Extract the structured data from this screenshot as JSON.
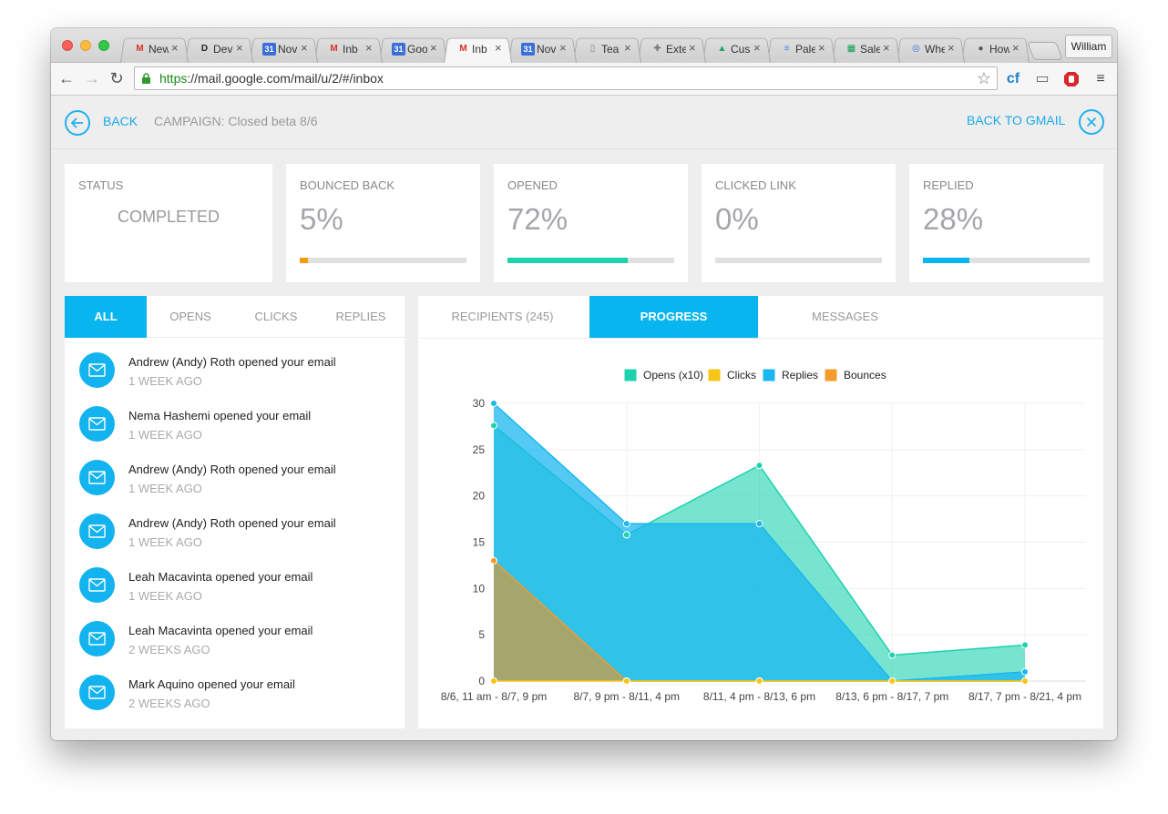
{
  "browser": {
    "tabs": [
      {
        "title": "New",
        "favicon": "gmail-icon",
        "fav_color": "#d93025",
        "fav_text": "M"
      },
      {
        "title": "Dev",
        "favicon": "dev-icon",
        "fav_color": "#222222",
        "fav_text": "D"
      },
      {
        "title": "Nov",
        "favicon": "calendar-icon",
        "fav_color": "#3b6fd8",
        "fav_text": "31"
      },
      {
        "title": "Inb",
        "favicon": "gmail-icon",
        "fav_color": "#d93025",
        "fav_text": "M"
      },
      {
        "title": "Goo",
        "favicon": "calendar-icon",
        "fav_color": "#3b6fd8",
        "fav_text": "31"
      },
      {
        "title": "Inb",
        "favicon": "gmail-icon",
        "fav_color": "#d93025",
        "fav_text": "M",
        "active": true
      },
      {
        "title": "Nov",
        "favicon": "calendar-icon",
        "fav_color": "#3b6fd8",
        "fav_text": "31"
      },
      {
        "title": "Tea",
        "favicon": "document-icon",
        "fav_color": "#888888",
        "fav_text": "▯"
      },
      {
        "title": "Exte",
        "favicon": "puzzle-icon",
        "fav_color": "#777777",
        "fav_text": "✚"
      },
      {
        "title": "Cus",
        "favicon": "drive-icon",
        "fav_color": "#1fa463",
        "fav_text": "▲"
      },
      {
        "title": "Pale",
        "favicon": "docs-icon",
        "fav_color": "#4285f4",
        "fav_text": "≡"
      },
      {
        "title": "Sale",
        "favicon": "sheets-icon",
        "fav_color": "#0f9d58",
        "fav_text": "▦"
      },
      {
        "title": "Whe",
        "favicon": "target-icon",
        "fav_color": "#3b6fd8",
        "fav_text": "◎"
      },
      {
        "title": "How",
        "favicon": "apple-icon",
        "fav_color": "#555555",
        "fav_text": "●"
      }
    ],
    "close_glyph": "×",
    "profile_name": "William",
    "url_scheme": "https",
    "url_rest": "://mail.google.com/mail/u/2/#/inbox"
  },
  "header": {
    "back_label": "BACK",
    "campaign_label": "CAMPAIGN: Closed beta 8/6",
    "back_to_gmail_label": "BACK TO GMAIL"
  },
  "stats": {
    "status": {
      "label": "STATUS",
      "value": "COMPLETED"
    },
    "bounced": {
      "label": "BOUNCED BACK",
      "value": "5%",
      "fraction": 0.05,
      "color": "#f39c12"
    },
    "opened": {
      "label": "OPENED",
      "value": "72%",
      "fraction": 0.72,
      "color": "#1dd2af"
    },
    "clicked": {
      "label": "CLICKED LINK",
      "value": "0%",
      "fraction": 0.0,
      "color": "#f1c40f"
    },
    "replied": {
      "label": "REPLIED",
      "value": "28%",
      "fraction": 0.28,
      "color": "#09b5ee"
    }
  },
  "activity": {
    "tabs": [
      "ALL",
      "OPENS",
      "CLICKS",
      "REPLIES"
    ],
    "active_tab": "ALL",
    "items": [
      {
        "text": "Andrew (Andy) Roth opened your email",
        "time": "1 WEEK AGO"
      },
      {
        "text": "Nema Hashemi opened your email",
        "time": "1 WEEK AGO"
      },
      {
        "text": "Andrew (Andy) Roth opened your email",
        "time": "1 WEEK AGO"
      },
      {
        "text": "Andrew (Andy) Roth opened your email",
        "time": "1 WEEK AGO"
      },
      {
        "text": "Leah Macavinta opened your email",
        "time": "1 WEEK AGO"
      },
      {
        "text": "Leah Macavinta opened your email",
        "time": "2 WEEKS AGO"
      },
      {
        "text": "Mark Aquino opened your email",
        "time": "2 WEEKS AGO"
      }
    ]
  },
  "detail_tabs": {
    "recipients": "RECIPIENTS (245)",
    "progress": "PROGRESS",
    "messages": "MESSAGES",
    "active": "PROGRESS"
  },
  "chart_data": {
    "type": "area",
    "categories": [
      "8/6, 11 am - 8/7, 9 pm",
      "8/7, 9 pm - 8/11, 4 pm",
      "8/11, 4 pm - 8/13, 6 pm",
      "8/13, 6 pm - 8/17, 7 pm",
      "8/17, 7 pm - 8/21, 4 pm"
    ],
    "yticks": [
      0,
      5,
      10,
      15,
      20,
      25,
      30
    ],
    "ylim": [
      0,
      30
    ],
    "grid": true,
    "legend_position": "top",
    "series": [
      {
        "name": "Opens (x10)",
        "values": [
          27.6,
          15.8,
          23.3,
          2.8,
          3.9
        ],
        "color": "#1dd2af"
      },
      {
        "name": "Clicks",
        "values": [
          0,
          0,
          0,
          0,
          0
        ],
        "color": "#f5c518"
      },
      {
        "name": "Replies",
        "values": [
          30,
          17,
          17,
          0,
          1
        ],
        "color": "#1ab7f0"
      },
      {
        "name": "Bounces",
        "values": [
          13,
          0,
          0,
          0,
          0
        ],
        "color": "#f39c2c"
      }
    ]
  }
}
